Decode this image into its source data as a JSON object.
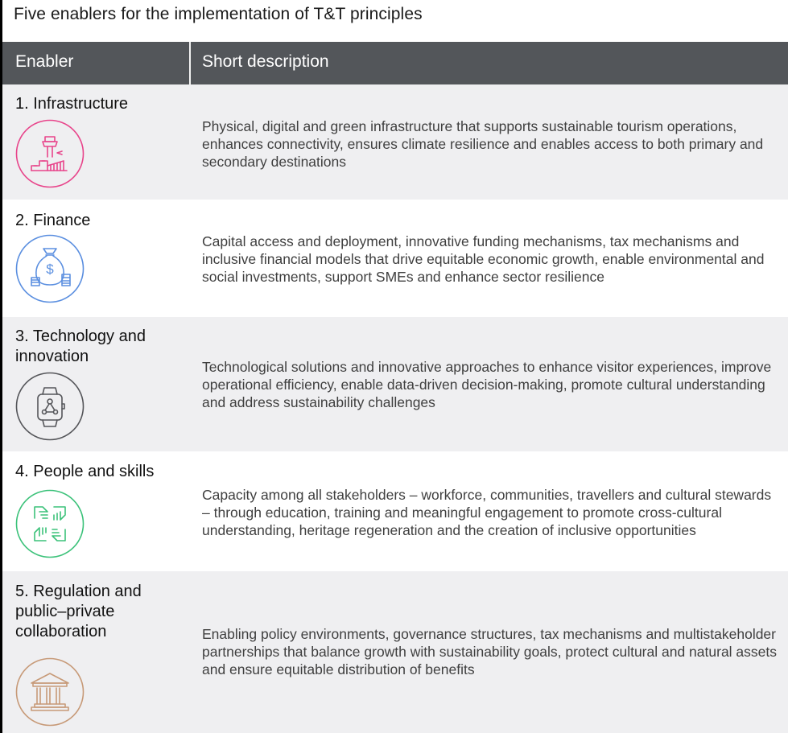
{
  "title": "Five enablers for the implementation of T&T principles",
  "table": {
    "headers": [
      "Enabler",
      "Short description"
    ],
    "rows": [
      {
        "name": "1. Infrastructure",
        "description": "Physical, digital and green infrastructure that supports sustainable tourism operations, enhances connectivity, ensures climate resilience and enables access to both primary and secondary destinations",
        "icon": "airport-tower-icon",
        "color": "#e8458b"
      },
      {
        "name": "2. Finance",
        "description": "Capital access and deployment, innovative funding mechanisms, tax mechanisms and inclusive financial models that drive equitable economic growth, enable environmental and social investments, support SMEs and enhance sector resilience",
        "icon": "money-bag-icon",
        "color": "#5b8fe0"
      },
      {
        "name": "3. Technology and innovation",
        "description": "Technological solutions and innovative approaches to enhance visitor experiences, improve operational efficiency, enable data-driven decision-making, promote cultural understanding and address sustainability challenges",
        "icon": "smartwatch-icon",
        "color": "#55565a"
      },
      {
        "name": "4. People and skills",
        "description": "Capacity among all stakeholders – workforce, communities, travellers and cultural stewards – through education, training and meaningful engagement to promote cross-cultural understanding, heritage regeneration and the creation of inclusive opportunities",
        "icon": "hands-icon",
        "color": "#3cc27a"
      },
      {
        "name": "5. Regulation and public–private collaboration",
        "description": "Enabling policy environments, governance structures, tax mechanisms and multistakeholder partnerships that balance growth with sustainability goals, protect cultural and natural assets and ensure equitable distribution of benefits",
        "icon": "government-building-icon",
        "color": "#c79a78"
      }
    ]
  }
}
